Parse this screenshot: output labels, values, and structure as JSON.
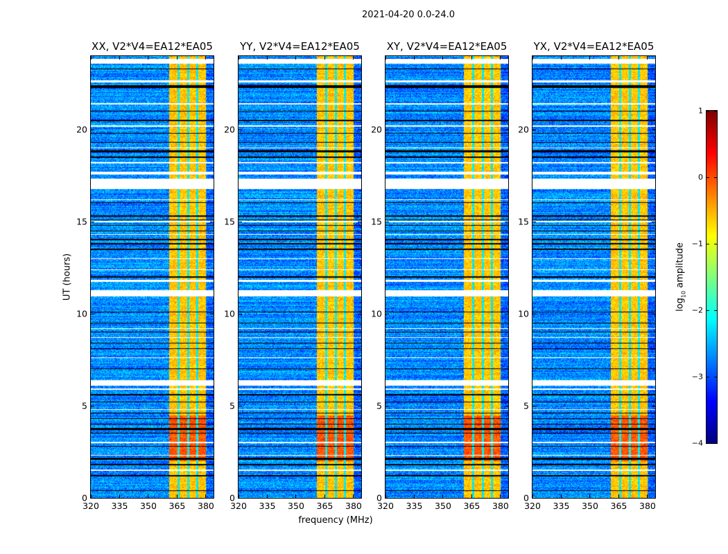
{
  "chart_data": {
    "type": "heatmap",
    "title": "2021-04-20 0.0-24.0",
    "xlabel": "frequency (MHz)",
    "ylabel": "UT (hours)",
    "xlim": [
      320,
      384
    ],
    "ylim": [
      0,
      24
    ],
    "xticks": [
      320,
      335,
      350,
      365,
      380
    ],
    "yticks": [
      0,
      5,
      10,
      15,
      20
    ],
    "panels": [
      {
        "title": "XX, V2*V4=EA12*EA05",
        "seed": 11
      },
      {
        "title": "YY, V2*V4=EA12*EA05",
        "seed": 23
      },
      {
        "title": "XY, V2*V4=EA12*EA05",
        "seed": 37
      },
      {
        "title": "YX, V2*V4=EA12*EA05",
        "seed": 41
      }
    ],
    "background_log_amplitude": -2.7,
    "rfi_band_mhz": [
      360.5,
      380
    ],
    "rfi_band_log_amplitude": -0.6,
    "rfi_band_strong_hours": [
      2,
      4.5
    ],
    "rfi_band_gaps_mhz": [
      365.5,
      370.6,
      375.3
    ],
    "flagged_white_hours": [
      [
        16.8,
        17.35
      ],
      [
        10.95,
        11.3
      ],
      [
        6.1,
        6.4
      ],
      [
        11.75,
        11.85
      ],
      [
        17.6,
        17.75
      ],
      [
        23.6,
        23.85
      ],
      [
        22.6,
        22.7
      ],
      [
        5.9,
        5.95
      ],
      [
        12.4,
        12.45
      ],
      [
        15.0,
        15.05
      ],
      [
        16.2,
        16.25
      ],
      [
        18.2,
        18.25
      ],
      [
        21.4,
        21.45
      ],
      [
        20.2,
        20.25
      ],
      [
        8.7,
        8.75
      ],
      [
        4.8,
        4.85
      ],
      [
        1.5,
        1.55
      ],
      [
        7.6,
        7.65
      ],
      [
        9.2,
        9.25
      ],
      [
        3.0,
        3.05
      ],
      [
        14.3,
        14.35
      ],
      [
        19.0,
        19.05
      ],
      [
        2.3,
        2.35
      ],
      [
        13.0,
        13.05
      ]
    ],
    "flagged_black_hours": [
      [
        23.3,
        23.35
      ],
      [
        22.3,
        22.45
      ],
      [
        21.0,
        21.05
      ],
      [
        20.5,
        20.55
      ],
      [
        19.8,
        19.85
      ],
      [
        19.3,
        19.35
      ],
      [
        18.8,
        18.9
      ],
      [
        18.5,
        18.55
      ],
      [
        16.05,
        16.1
      ],
      [
        15.3,
        15.35
      ],
      [
        15.1,
        15.15
      ],
      [
        14.8,
        14.85
      ],
      [
        14.5,
        14.55
      ],
      [
        14.0,
        14.1
      ],
      [
        13.8,
        13.85
      ],
      [
        13.5,
        13.55
      ],
      [
        12.0,
        12.05
      ],
      [
        10.1,
        10.15
      ],
      [
        9.5,
        9.55
      ],
      [
        9.0,
        9.05
      ],
      [
        8.4,
        8.45
      ],
      [
        8.1,
        8.15
      ],
      [
        7.0,
        7.05
      ],
      [
        5.6,
        5.65
      ],
      [
        5.2,
        5.25
      ],
      [
        4.6,
        4.65
      ],
      [
        4.3,
        4.35
      ],
      [
        4.0,
        4.05
      ],
      [
        3.7,
        3.8
      ],
      [
        3.5,
        3.55
      ],
      [
        2.8,
        2.85
      ],
      [
        2.1,
        2.2
      ],
      [
        1.8,
        1.85
      ],
      [
        1.2,
        1.25
      ],
      [
        0.4,
        0.45
      ]
    ],
    "colorbar": {
      "label_main": "log",
      "label_sub": "10",
      "label_rest": " amplitude",
      "range": [
        -4,
        1
      ],
      "ticks": [
        1,
        0,
        -1,
        -2,
        -3,
        -4
      ],
      "tick_labels": [
        "1",
        "0",
        "−1",
        "−2",
        "−3",
        "−4"
      ],
      "colormap": "jet"
    }
  }
}
